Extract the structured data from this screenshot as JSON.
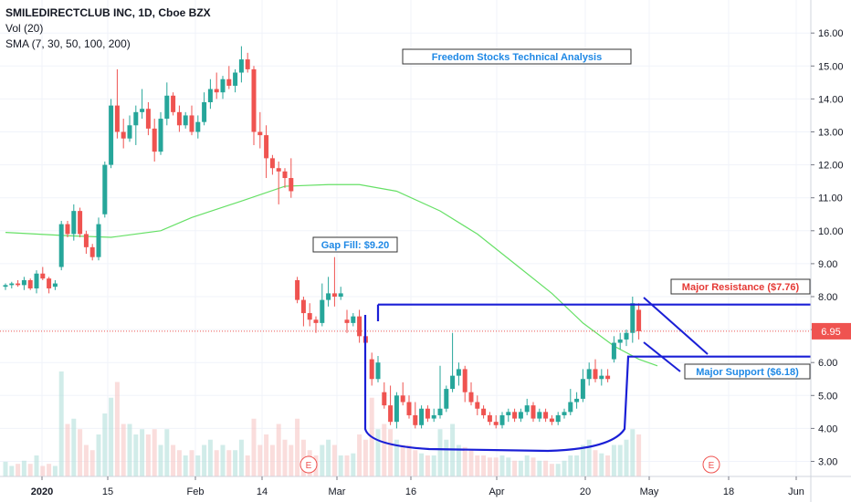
{
  "legend": {
    "symbol": "SMILEDIRECTCLUB INC, 1D, Cboe BZX",
    "volume": "Vol (20)",
    "sma": "SMA (7, 30, 50, 100, 200)"
  },
  "annotations": {
    "title": "Freedom Stocks Technical Analysis",
    "gap_fill": "Gap Fill: $9.20",
    "resistance": "Major Resistance ($7.76)",
    "support": "Major Support ($6.18)",
    "price_label": "6.95",
    "earnings_marker": "E"
  },
  "colors": {
    "up": "#26a69a",
    "down": "#ef5350",
    "sma": "#66e066",
    "channel": "#1a1fd6",
    "title_text": "#1e88e5",
    "resistance_text": "#e53935",
    "support_text": "#1e88e5",
    "price_line": "#ef5350",
    "earnings": "#ef5350"
  },
  "chart_data": {
    "type": "candlestick",
    "y_axis": {
      "min": 3.0,
      "max": 16.0,
      "ticks": [
        "3.00",
        "4.00",
        "5.00",
        "6.00",
        "7.00",
        "8.00",
        "9.00",
        "10.00",
        "11.00",
        "12.00",
        "13.00",
        "14.00",
        "15.00",
        "16.00"
      ]
    },
    "x_axis": {
      "ticks": [
        "2020",
        "15",
        "Feb",
        "14",
        "Mar",
        "16",
        "Apr",
        "20",
        "May",
        "18",
        "Jun"
      ]
    },
    "levels": {
      "resistance": 7.76,
      "support": 6.18,
      "gap_fill": 9.2,
      "last_price": 6.95
    },
    "candles": [
      [
        8.3,
        8.4,
        8.2,
        8.35
      ],
      [
        8.35,
        8.45,
        8.25,
        8.4
      ],
      [
        8.4,
        8.5,
        8.3,
        8.35
      ],
      [
        8.35,
        8.6,
        8.2,
        8.5
      ],
      [
        8.5,
        8.55,
        8.2,
        8.25
      ],
      [
        8.25,
        8.8,
        8.1,
        8.7
      ],
      [
        8.7,
        8.9,
        8.5,
        8.55
      ],
      [
        8.55,
        8.6,
        8.1,
        8.25
      ],
      [
        8.3,
        8.5,
        8.2,
        8.4
      ],
      [
        8.9,
        10.3,
        8.8,
        10.2
      ],
      [
        10.2,
        10.3,
        9.8,
        9.9
      ],
      [
        9.9,
        10.8,
        9.7,
        10.6
      ],
      [
        10.6,
        10.7,
        9.8,
        9.9
      ],
      [
        9.9,
        10.0,
        9.3,
        9.5
      ],
      [
        9.5,
        9.6,
        9.1,
        9.2
      ],
      [
        9.2,
        10.4,
        9.1,
        10.2
      ],
      [
        10.5,
        12.1,
        10.4,
        12.0
      ],
      [
        12.0,
        14.0,
        11.9,
        13.8
      ],
      [
        13.8,
        14.9,
        12.8,
        13.0
      ],
      [
        13.0,
        13.4,
        12.5,
        12.8
      ],
      [
        12.8,
        13.5,
        12.7,
        13.2
      ],
      [
        13.2,
        13.8,
        12.6,
        13.6
      ],
      [
        13.6,
        14.3,
        13.4,
        13.7
      ],
      [
        13.7,
        13.9,
        12.9,
        13.1
      ],
      [
        13.1,
        13.4,
        12.1,
        12.4
      ],
      [
        12.4,
        13.6,
        12.3,
        13.4
      ],
      [
        13.4,
        14.5,
        13.2,
        14.1
      ],
      [
        14.1,
        14.2,
        13.5,
        13.6
      ],
      [
        13.6,
        13.8,
        13.0,
        13.2
      ],
      [
        13.2,
        13.6,
        13.1,
        13.5
      ],
      [
        13.5,
        13.8,
        12.9,
        13.0
      ],
      [
        13.0,
        13.5,
        12.8,
        13.3
      ],
      [
        13.3,
        14.2,
        13.2,
        13.9
      ],
      [
        13.9,
        14.6,
        13.7,
        14.3
      ],
      [
        14.3,
        14.8,
        14.0,
        14.2
      ],
      [
        14.2,
        14.7,
        14.0,
        14.6
      ],
      [
        14.6,
        15.0,
        14.3,
        14.4
      ],
      [
        14.4,
        14.9,
        14.2,
        14.8
      ],
      [
        14.8,
        15.6,
        14.5,
        15.2
      ],
      [
        15.2,
        15.4,
        14.8,
        14.9
      ],
      [
        14.9,
        15.0,
        12.6,
        13.0
      ],
      [
        13.0,
        13.6,
        12.5,
        12.9
      ],
      [
        12.9,
        13.2,
        11.6,
        12.2
      ],
      [
        12.2,
        12.3,
        11.7,
        11.9
      ],
      [
        11.9,
        12.1,
        10.8,
        11.8
      ],
      [
        11.8,
        11.9,
        11.3,
        11.6
      ],
      [
        11.6,
        12.2,
        11.0,
        11.2
      ],
      [
        8.5,
        8.6,
        7.8,
        7.9
      ],
      [
        7.9,
        8.0,
        7.1,
        7.5
      ],
      [
        7.5,
        7.8,
        7.1,
        7.3
      ],
      [
        7.3,
        7.4,
        6.9,
        7.2
      ],
      [
        7.2,
        8.4,
        7.1,
        7.9
      ],
      [
        7.9,
        8.6,
        7.7,
        8.1
      ],
      [
        8.1,
        9.2,
        7.7,
        8.0
      ],
      [
        8.0,
        8.3,
        7.9,
        8.1
      ],
      [
        7.3,
        7.6,
        6.9,
        7.2
      ],
      [
        7.2,
        7.5,
        7.1,
        7.4
      ],
      [
        7.4,
        7.6,
        6.6,
        6.8
      ],
      [
        6.8,
        7.2,
        6.4,
        6.6
      ],
      [
        6.1,
        6.3,
        5.3,
        5.5
      ],
      [
        5.5,
        6.2,
        5.4,
        6.0
      ],
      [
        5.1,
        5.4,
        4.6,
        4.7
      ],
      [
        4.7,
        5.3,
        4.1,
        4.2
      ],
      [
        4.2,
        5.1,
        4.0,
        5.0
      ],
      [
        5.0,
        5.4,
        4.7,
        4.8
      ],
      [
        4.8,
        5.0,
        4.3,
        4.4
      ],
      [
        4.4,
        4.8,
        4.0,
        4.1
      ],
      [
        4.1,
        4.7,
        4.0,
        4.6
      ],
      [
        4.6,
        4.7,
        4.2,
        4.3
      ],
      [
        4.3,
        4.6,
        4.2,
        4.4
      ],
      [
        4.4,
        5.9,
        4.3,
        4.6
      ],
      [
        4.6,
        5.3,
        4.5,
        5.2
      ],
      [
        5.2,
        6.9,
        5.1,
        5.6
      ],
      [
        5.6,
        6.0,
        5.3,
        5.8
      ],
      [
        5.8,
        5.9,
        4.8,
        5.1
      ],
      [
        5.1,
        5.4,
        4.7,
        4.8
      ],
      [
        4.8,
        5.0,
        4.4,
        4.6
      ],
      [
        4.6,
        4.7,
        4.3,
        4.4
      ],
      [
        4.4,
        4.5,
        4.1,
        4.2
      ],
      [
        4.2,
        4.4,
        4.0,
        4.1
      ],
      [
        4.1,
        4.5,
        4.0,
        4.4
      ],
      [
        4.4,
        4.6,
        4.2,
        4.5
      ],
      [
        4.5,
        4.6,
        4.2,
        4.3
      ],
      [
        4.3,
        4.6,
        4.2,
        4.5
      ],
      [
        4.5,
        4.9,
        4.4,
        4.7
      ],
      [
        4.7,
        4.8,
        4.2,
        4.3
      ],
      [
        4.3,
        4.6,
        4.2,
        4.5
      ],
      [
        4.5,
        4.6,
        4.2,
        4.3
      ],
      [
        4.3,
        4.4,
        4.1,
        4.2
      ],
      [
        4.2,
        4.5,
        4.1,
        4.4
      ],
      [
        4.4,
        4.6,
        4.3,
        4.5
      ],
      [
        4.5,
        5.2,
        4.4,
        4.8
      ],
      [
        4.8,
        5.1,
        4.6,
        4.9
      ],
      [
        4.9,
        5.8,
        4.8,
        5.5
      ],
      [
        5.5,
        6.0,
        5.3,
        5.8
      ],
      [
        5.8,
        6.1,
        5.4,
        5.5
      ],
      [
        5.5,
        5.8,
        5.3,
        5.6
      ],
      [
        5.6,
        5.8,
        5.4,
        5.5
      ],
      [
        6.1,
        6.8,
        6.0,
        6.6
      ],
      [
        6.6,
        6.9,
        6.4,
        6.7
      ],
      [
        6.7,
        7.0,
        6.5,
        6.9
      ],
      [
        6.9,
        8.0,
        6.6,
        7.8
      ],
      [
        7.6,
        7.8,
        6.7,
        6.95
      ]
    ],
    "volume": [
      0.14,
      0.1,
      0.12,
      0.15,
      0.12,
      0.2,
      0.1,
      0.12,
      0.1,
      1.0,
      0.5,
      0.55,
      0.45,
      0.3,
      0.25,
      0.4,
      0.6,
      0.75,
      0.9,
      0.5,
      0.5,
      0.4,
      0.45,
      0.4,
      0.45,
      0.3,
      0.45,
      0.3,
      0.25,
      0.2,
      0.25,
      0.2,
      0.3,
      0.35,
      0.25,
      0.3,
      0.25,
      0.25,
      0.35,
      0.2,
      0.55,
      0.3,
      0.4,
      0.3,
      0.5,
      0.35,
      0.3,
      0.55,
      0.35,
      0.25,
      0.2,
      0.3,
      0.35,
      0.3,
      0.2,
      0.2,
      0.22,
      0.4,
      0.35,
      0.75,
      0.45,
      0.5,
      0.45,
      0.35,
      0.3,
      0.3,
      0.25,
      0.22,
      0.2,
      0.2,
      0.45,
      0.35,
      0.5,
      0.3,
      0.28,
      0.25,
      0.2,
      0.2,
      0.18,
      0.18,
      0.2,
      0.18,
      0.15,
      0.15,
      0.2,
      0.18,
      0.15,
      0.15,
      0.12,
      0.12,
      0.15,
      0.2,
      0.2,
      0.3,
      0.35,
      0.25,
      0.22,
      0.2,
      0.3,
      0.3,
      0.35,
      0.45,
      0.4
    ],
    "sma": [
      [
        0,
        9.95
      ],
      [
        10,
        9.85
      ],
      [
        17,
        9.8
      ],
      [
        25,
        10.0
      ],
      [
        30,
        10.4
      ],
      [
        38,
        10.9
      ],
      [
        45,
        11.35
      ],
      [
        52,
        11.4
      ],
      [
        57,
        11.4
      ],
      [
        63,
        11.2
      ],
      [
        70,
        10.6
      ],
      [
        76,
        9.9
      ],
      [
        82,
        9.0
      ],
      [
        88,
        8.1
      ],
      [
        93,
        7.2
      ],
      [
        98,
        6.5
      ],
      [
        102,
        6.1
      ],
      [
        105,
        5.9
      ]
    ]
  }
}
